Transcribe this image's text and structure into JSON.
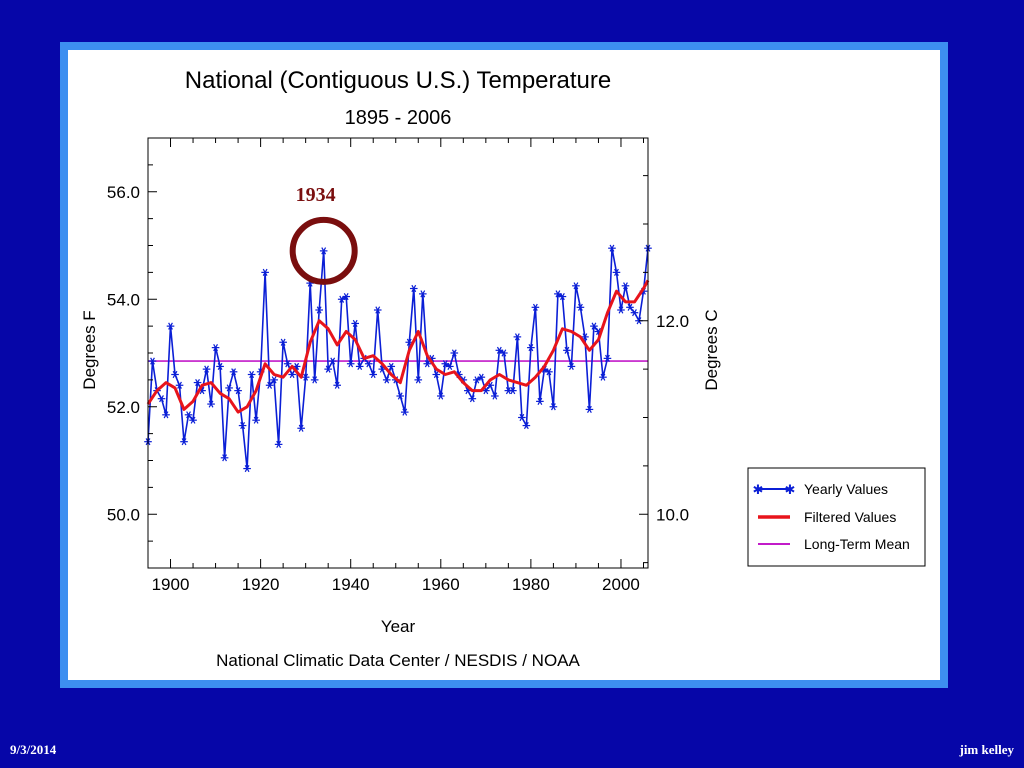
{
  "slide": {
    "footer_date": "9/3/2014",
    "footer_author": "jim kelley",
    "colors": {
      "background": "#0606a8",
      "frame": "#3d8ff0",
      "panel": "#ffffff"
    }
  },
  "chart_data": {
    "type": "line",
    "title": "National (Contiguous U.S.) Temperature",
    "subtitle": "1895 - 2006",
    "xlabel": "Year",
    "ylabel": "Degrees F",
    "ylabel_right": "Degrees C",
    "source": "National Climatic Data Center / NESDIS / NOAA",
    "xlim": [
      1895,
      2006
    ],
    "ylim": [
      49.0,
      57.0
    ],
    "x_ticks": [
      "1900",
      "1920",
      "1940",
      "1960",
      "1980",
      "2000"
    ],
    "y_ticks": [
      "50.0",
      "52.0",
      "54.0",
      "56.0"
    ],
    "y_ticks_right": [
      "10.0",
      "12.0"
    ],
    "annotation": {
      "label": "1934",
      "year": 1934,
      "value": 54.9,
      "color": "#7a0e0e"
    },
    "legend_position": "bottom-right",
    "legend": [
      "Yearly Values",
      "Filtered Values",
      "Long-Term Mean"
    ],
    "series": [
      {
        "name": "Yearly Values",
        "color": "#0b1fd6",
        "x": [
          1895,
          1896,
          1897,
          1898,
          1899,
          1900,
          1901,
          1902,
          1903,
          1904,
          1905,
          1906,
          1907,
          1908,
          1909,
          1910,
          1911,
          1912,
          1913,
          1914,
          1915,
          1916,
          1917,
          1918,
          1919,
          1920,
          1921,
          1922,
          1923,
          1924,
          1925,
          1926,
          1927,
          1928,
          1929,
          1930,
          1931,
          1932,
          1933,
          1934,
          1935,
          1936,
          1937,
          1938,
          1939,
          1940,
          1941,
          1942,
          1943,
          1944,
          1945,
          1946,
          1947,
          1948,
          1949,
          1950,
          1951,
          1952,
          1953,
          1954,
          1955,
          1956,
          1957,
          1958,
          1959,
          1960,
          1961,
          1962,
          1963,
          1964,
          1965,
          1966,
          1967,
          1968,
          1969,
          1970,
          1971,
          1972,
          1973,
          1974,
          1975,
          1976,
          1977,
          1978,
          1979,
          1980,
          1981,
          1982,
          1983,
          1984,
          1985,
          1986,
          1987,
          1988,
          1989,
          1990,
          1991,
          1992,
          1993,
          1994,
          1995,
          1996,
          1997,
          1998,
          1999,
          2000,
          2001,
          2002,
          2003,
          2004,
          2005,
          2006
        ],
        "values": [
          51.35,
          52.85,
          52.3,
          52.15,
          51.85,
          53.5,
          52.6,
          52.4,
          51.35,
          51.85,
          51.75,
          52.45,
          52.3,
          52.7,
          52.05,
          53.1,
          52.75,
          51.05,
          52.35,
          52.65,
          52.3,
          51.65,
          50.85,
          52.6,
          51.75,
          52.65,
          54.5,
          52.4,
          52.5,
          51.3,
          53.2,
          52.8,
          52.6,
          52.75,
          51.6,
          52.55,
          54.3,
          52.5,
          53.8,
          54.9,
          52.7,
          52.85,
          52.4,
          54.0,
          54.05,
          52.8,
          53.55,
          52.75,
          52.9,
          52.8,
          52.6,
          53.8,
          52.7,
          52.5,
          52.75,
          52.5,
          52.2,
          51.9,
          53.2,
          54.2,
          52.5,
          54.1,
          52.8,
          52.9,
          52.6,
          52.2,
          52.8,
          52.75,
          53.0,
          52.6,
          52.5,
          52.3,
          52.15,
          52.5,
          52.55,
          52.3,
          52.4,
          52.2,
          53.05,
          53.0,
          52.3,
          52.3,
          53.3,
          51.8,
          51.65,
          53.1,
          53.85,
          52.1,
          52.7,
          52.65,
          52.0,
          54.1,
          54.05,
          53.05,
          52.75,
          54.25,
          53.85,
          53.3,
          51.95,
          53.5,
          53.4,
          52.55,
          52.9,
          54.95,
          54.5,
          53.8,
          54.25,
          53.85,
          53.75,
          53.6,
          54.15,
          54.95
        ]
      },
      {
        "name": "Filtered Values",
        "color": "#e8141b",
        "x": [
          1895,
          1897,
          1899,
          1901,
          1903,
          1905,
          1907,
          1909,
          1911,
          1913,
          1915,
          1917,
          1919,
          1921,
          1923,
          1925,
          1927,
          1929,
          1931,
          1933,
          1935,
          1937,
          1939,
          1941,
          1943,
          1945,
          1947,
          1949,
          1951,
          1953,
          1955,
          1957,
          1959,
          1961,
          1963,
          1965,
          1967,
          1969,
          1971,
          1973,
          1975,
          1977,
          1979,
          1981,
          1983,
          1985,
          1987,
          1989,
          1991,
          1993,
          1995,
          1997,
          1999,
          2001,
          2003,
          2005,
          2006
        ],
        "values": [
          52.05,
          52.3,
          52.45,
          52.35,
          51.95,
          52.1,
          52.4,
          52.45,
          52.25,
          52.15,
          51.9,
          52.0,
          52.3,
          52.8,
          52.6,
          52.55,
          52.75,
          52.55,
          53.2,
          53.6,
          53.45,
          53.15,
          53.4,
          53.25,
          52.9,
          52.95,
          52.8,
          52.6,
          52.45,
          53.05,
          53.4,
          52.95,
          52.7,
          52.6,
          52.65,
          52.45,
          52.3,
          52.3,
          52.5,
          52.6,
          52.5,
          52.45,
          52.4,
          52.55,
          52.75,
          53.05,
          53.45,
          53.4,
          53.3,
          53.05,
          53.25,
          53.75,
          54.15,
          53.95,
          53.95,
          54.2,
          54.35
        ]
      },
      {
        "name": "Long-Term Mean",
        "color": "#c21bc9",
        "x": [
          1895,
          2006
        ],
        "values": [
          52.85,
          52.85
        ]
      }
    ]
  }
}
